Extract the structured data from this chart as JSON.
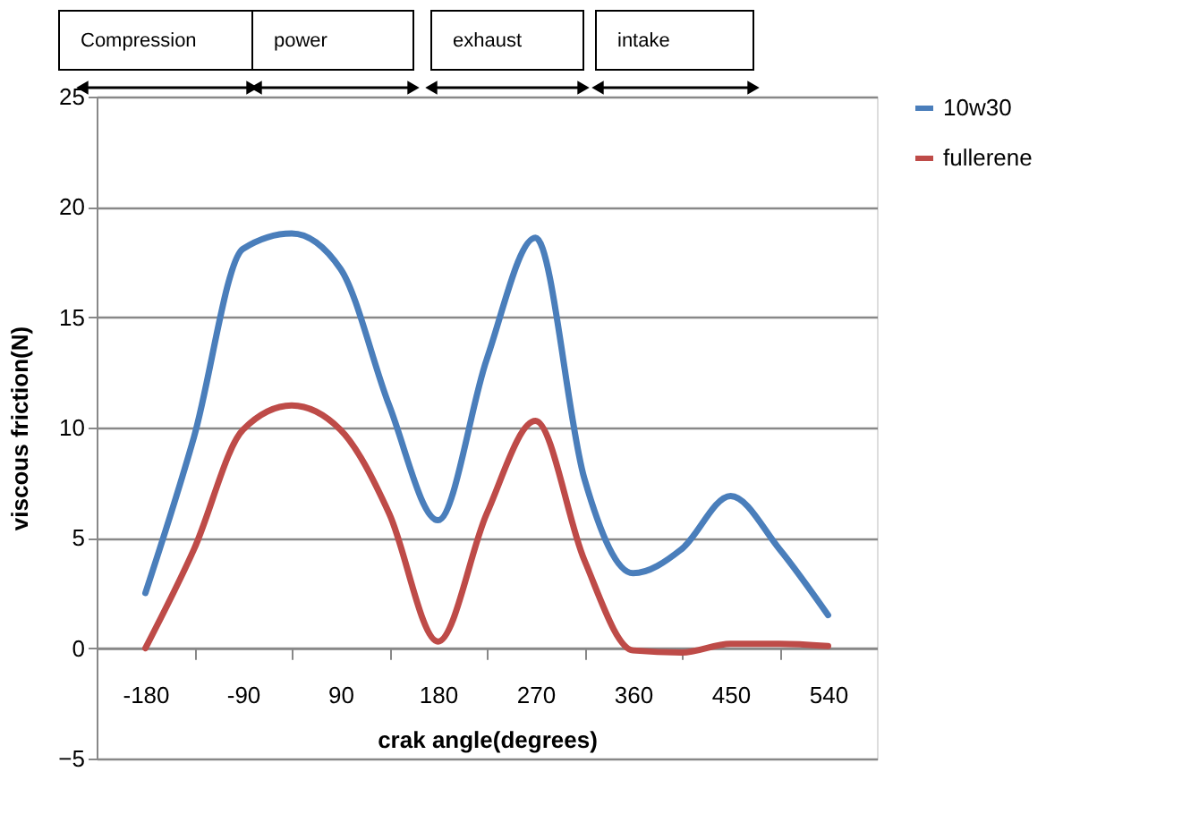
{
  "chart_data": {
    "type": "line",
    "xlabel": "crak angle(degrees)",
    "ylabel": "viscous friction(N)",
    "categories": [
      "-180",
      null,
      "-90",
      null,
      "90",
      null,
      "180",
      null,
      "270",
      null,
      "360",
      null,
      "450",
      null,
      "540"
    ],
    "series": [
      {
        "name": "10w30",
        "color": "#4a7ebb",
        "values": [
          2.5,
          9.6,
          18.1,
          18.8,
          17.2,
          11.0,
          5.8,
          13.1,
          18.6,
          7.7,
          3.4,
          4.5,
          6.9,
          4.5,
          1.5
        ]
      },
      {
        "name": "fullerene",
        "color": "#be4b48",
        "values": [
          0,
          4.5,
          9.9,
          11.0,
          9.9,
          6.1,
          0.3,
          6.1,
          10.3,
          4.0,
          -0.1,
          -0.2,
          0.2,
          0.2,
          0.1
        ]
      }
    ],
    "ylim": [
      -5,
      25
    ],
    "yticks": [
      -5,
      0,
      5,
      10,
      15,
      20,
      25
    ],
    "grid": "y",
    "legend": "right",
    "marker": "none",
    "line_style": "solid",
    "annotations": [
      "Compression",
      "power",
      "exhaust",
      "intake"
    ]
  }
}
